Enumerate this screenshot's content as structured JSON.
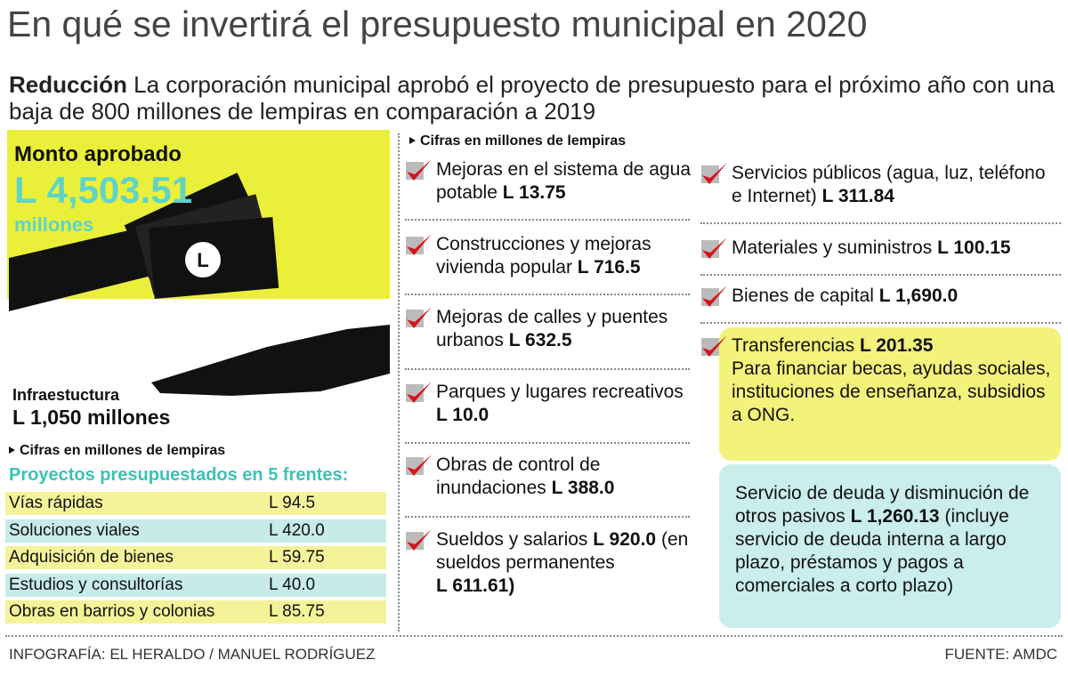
{
  "title": "En qué se invertirá el presupuesto municipal en 2020",
  "lead": {
    "bold": "Reducción",
    "text": "La corporación municipal aprobó el proyecto de presupuesto para el próximo año con una baja de 800 millones de lempiras en comparación a 2019"
  },
  "approved": {
    "label": "Monto aprobado",
    "amount": "L 4,503.51",
    "unit": "millones"
  },
  "infrastructure": {
    "label": "Infraestuctura",
    "amount": "L 1,050 millones"
  },
  "units_note": "Cifras en millones de lempiras",
  "projects": {
    "title": "Proyectos presupuestados en 5 frentes:",
    "rows": [
      [
        "Vías rápidas",
        "L 94.5"
      ],
      [
        "Soluciones viales",
        "L 420.0"
      ],
      [
        "Adquisición de bienes",
        "L 59.75"
      ],
      [
        "Estudios y consultorías",
        "L 40.0"
      ],
      [
        "Obras en barrios y colonias",
        "L 85.75"
      ]
    ]
  },
  "items": [
    {
      "text": "Mejoras en el sistema de agua potable",
      "amount": "L 13.75"
    },
    {
      "text": "Construcciones y mejoras vivienda popular",
      "amount": "L 716.5"
    },
    {
      "text": "Mejoras de calles y puentes urbanos",
      "amount": "L 632.5"
    },
    {
      "text": "Parques y lugares recreativos",
      "amount": "L 10.0"
    },
    {
      "text": "Obras de control de inundaciones",
      "amount": "L 388.0"
    },
    {
      "text": "Sueldos y salarios",
      "amount": "L 920.0",
      "note": "(en sueldos permanentes",
      "note_amount": "L 611.61)"
    },
    {
      "text": "Servicios públicos (agua, luz, teléfono e Internet)",
      "amount": "L 311.84"
    },
    {
      "text": "Materiales y suministros",
      "amount": "L 100.15"
    },
    {
      "text": "Bienes de capital",
      "amount": "L 1,690.0"
    },
    {
      "text": "Transferencias",
      "amount": "L 201.35",
      "note": "Para financiar becas, ayudas sociales, instituciones de enseñanza, subsidios  a ONG."
    },
    {
      "text": "Servicio de deuda y disminución de otros pasivos",
      "amount": "L 1,260.13",
      "note": "(incluye servicio de deuda interna a largo plazo, préstamos y pagos a comerciales a corto plazo)"
    }
  ],
  "footer": {
    "credit": "INFOGRAFÍA: EL HERALDO / MANUEL RODRÍGUEZ",
    "source": "FUENTE: AMDC"
  }
}
